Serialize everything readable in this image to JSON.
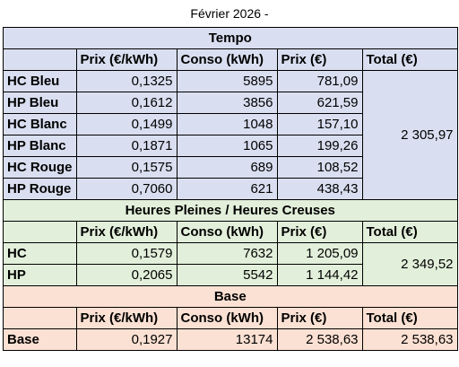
{
  "title": "Février 2026 -",
  "sections": [
    {
      "name": "Tempo",
      "color": "#d9dff0",
      "headers": [
        "Prix (€/kWh)",
        "Conso (kWh)",
        "Prix (€)",
        "Total (€)"
      ],
      "rows": [
        {
          "label": "HC Bleu",
          "price_kwh": "0,1325",
          "conso": "5895",
          "price": "781,09"
        },
        {
          "label": "HP Bleu",
          "price_kwh": "0,1612",
          "conso": "3856",
          "price": "621,59"
        },
        {
          "label": "HC Blanc",
          "price_kwh": "0,1499",
          "conso": "1048",
          "price": "157,10"
        },
        {
          "label": "HP Blanc",
          "price_kwh": "0,1871",
          "conso": "1065",
          "price": "199,26"
        },
        {
          "label": "HC Rouge",
          "price_kwh": "0,1575",
          "conso": "689",
          "price": "108,52"
        },
        {
          "label": "HP Rouge",
          "price_kwh": "0,7060",
          "conso": "621",
          "price": "438,43"
        }
      ],
      "total": "2 305,97"
    },
    {
      "name": "Heures Pleines / Heures Creuses",
      "color": "#e2efda",
      "headers": [
        "Prix (€/kWh)",
        "Conso (kWh)",
        "Prix (€)",
        "Total (€)"
      ],
      "rows": [
        {
          "label": "HC",
          "price_kwh": "0,1579",
          "conso": "7632",
          "price": "1 205,09"
        },
        {
          "label": "HP",
          "price_kwh": "0,2065",
          "conso": "5542",
          "price": "1 144,42"
        }
      ],
      "total": "2 349,52"
    },
    {
      "name": "Base",
      "color": "#fbe1d3",
      "headers": [
        "Prix (€/kWh)",
        "Conso (kWh)",
        "Prix (€)",
        "Total (€)"
      ],
      "rows": [
        {
          "label": "Base",
          "price_kwh": "0,1927",
          "conso": "13174",
          "price": "2 538,63"
        }
      ],
      "total": "2 538,63"
    }
  ]
}
